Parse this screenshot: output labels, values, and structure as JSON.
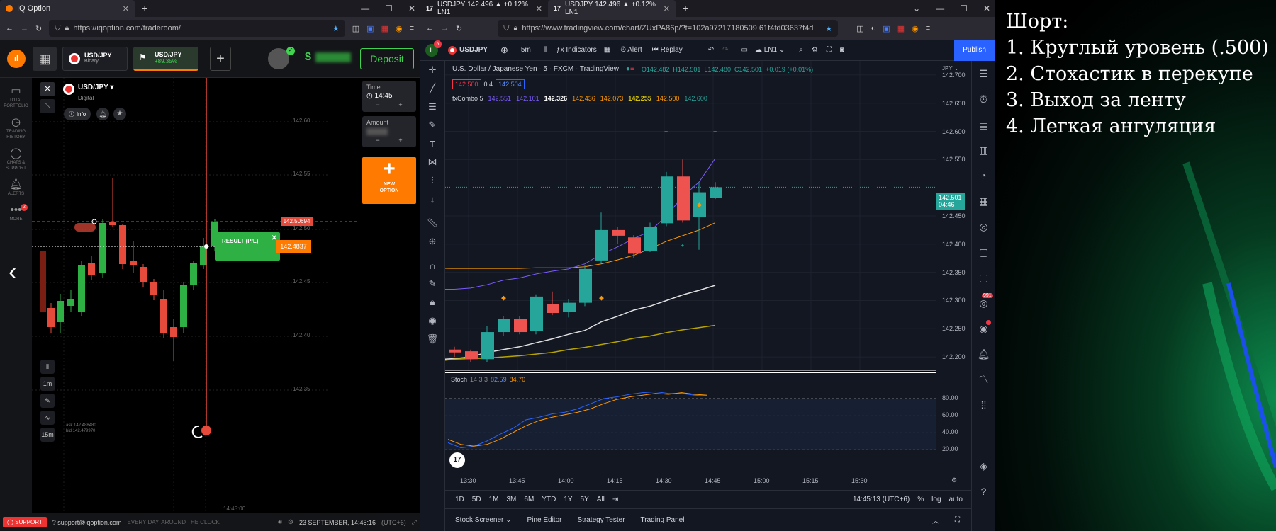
{
  "left_browser": {
    "tab_title": "IQ Option",
    "url": "https://iqoption.com/traderoom/"
  },
  "right_browser": {
    "tabs": [
      "USDJPY 142.496 ▲ +0.12% LN1",
      "USDJPY 142.496 ▲ +0.12% LN1"
    ],
    "url": "https://www.tradingview.com/chart/ZUxPA86p/?t=102a97217180509 61f4fd03637f4d"
  },
  "iq": {
    "assets": [
      {
        "name": "USD/JPY",
        "sub": "Binary"
      },
      {
        "name": "USD/JPY",
        "sub": "+89.35%"
      }
    ],
    "deposit_label": "Deposit",
    "balance": "$",
    "sidebar": [
      {
        "icon": "briefcase-icon",
        "label": "TOTAL PORTFOLIO"
      },
      {
        "icon": "history-icon",
        "label": "TRADING HISTORY"
      },
      {
        "icon": "chat-icon",
        "label": "CHATS & SUPPORT"
      },
      {
        "icon": "bell-icon",
        "label": "ALERTS"
      },
      {
        "icon": "more-icon",
        "label": "MORE"
      }
    ],
    "more_badge": "2",
    "pair": "USD/JPY",
    "pair_type": "Digital",
    "info_label": "Info",
    "time_label": "Time",
    "time_value": "14:45",
    "amount_label": "Amount",
    "new_option_label": "NEW OPTION",
    "price_levels": [
      "142.60",
      "142.55",
      "142.50",
      "142.45",
      "142.40",
      "142.35"
    ],
    "marker_red": "142.50694",
    "marker_orange": "142.4837",
    "result_label": "RESULT (P/L)",
    "intervals": [
      "1m",
      "15m"
    ],
    "ask": "ask 142.488480",
    "bid": "bid 142.479970",
    "expiry_time": "14:45:00",
    "footer": {
      "support": "SUPPORT",
      "email": "support@iqoption.com",
      "tagline": "EVERY DAY, AROUND THE CLOCK",
      "datetime": "23 SEPTEMBER, 14:45:16",
      "tz": "(UTC+6)"
    }
  },
  "tv": {
    "symbol": "USDJPY",
    "interval": "5m",
    "toolbar": [
      "Indicators",
      "Alert",
      "Replay"
    ],
    "layout_name": "LN1",
    "publish_label": "Publish",
    "legend_title": "U.S. Dollar / Japanese Yen · 5 · FXCM · TradingView",
    "ohlc": {
      "o": "O142.482",
      "h": "H142.501",
      "l": "L142.480",
      "c": "C142.501",
      "chg": "+0.019 (+0.01%)"
    },
    "bid_ask": [
      "142.500",
      "0.4",
      "142.504"
    ],
    "fxcombo": {
      "name": "fxCombo 5",
      "values": [
        "142.551",
        "142.101",
        "142.326",
        "142.436",
        "142.073",
        "142.255",
        "142.500",
        "142.600"
      ]
    },
    "price_axis": [
      "142.700",
      "142.650",
      "142.600",
      "142.550",
      "142.450",
      "142.400",
      "142.350",
      "142.300",
      "142.250",
      "142.200"
    ],
    "currency": "JPY",
    "current_price": "142.501",
    "countdown": "04:46",
    "stoch": {
      "name": "Stoch",
      "params": "14 3 3",
      "k": "82.59",
      "d": "84.70",
      "levels": [
        "80.00",
        "60.00",
        "40.00",
        "20.00"
      ]
    },
    "time_axis": [
      "13:30",
      "13:45",
      "14:00",
      "14:15",
      "14:30",
      "14:45",
      "15:00",
      "15:15",
      "15:30"
    ],
    "ranges": [
      "1D",
      "5D",
      "1M",
      "3M",
      "6M",
      "YTD",
      "1Y",
      "5Y",
      "All"
    ],
    "clock": "14:45:13 (UTC+6)",
    "scale_opts": [
      "%",
      "log",
      "auto"
    ],
    "bottom_tabs": [
      "Stock Screener",
      "Pine Editor",
      "Strategy Tester",
      "Trading Panel"
    ],
    "alerts_badge": "991",
    "notif_badge": "5"
  },
  "note": {
    "title": "Шорт:",
    "items": [
      "1. Круглый уровень (.500)",
      "2. Стохастик в перекупе",
      "3. Выход за ленту",
      "4. Легкая ангуляция"
    ]
  },
  "colors": {
    "up": "#26a69a",
    "down": "#ef5350",
    "iq_up": "#2fb044",
    "iq_down": "#e64a3b",
    "accent_orange": "#ff7a00",
    "tv_blue": "#2962ff"
  }
}
